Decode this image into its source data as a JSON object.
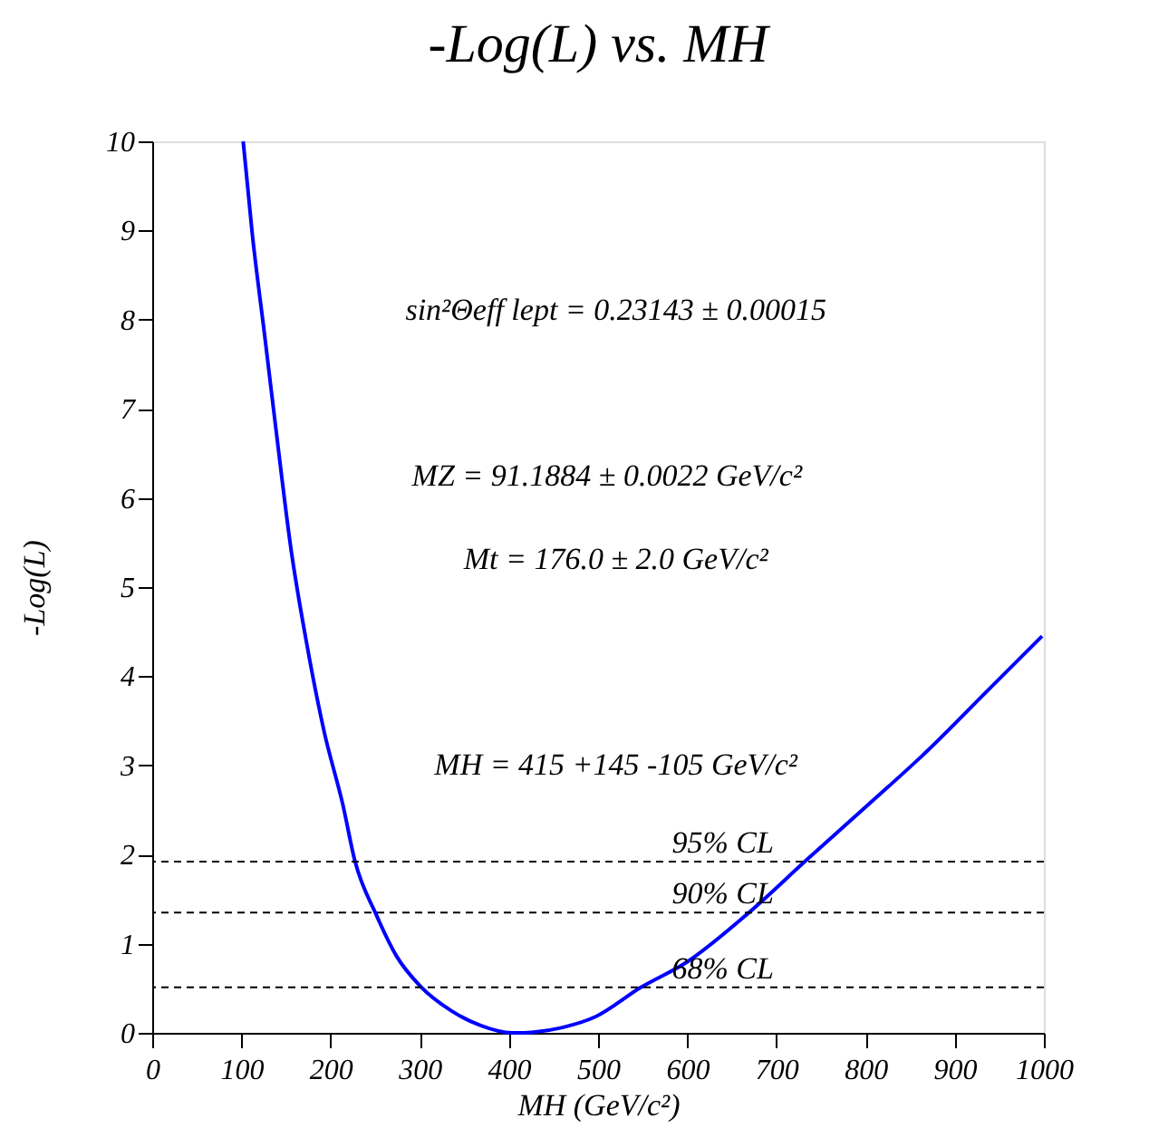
{
  "chart_data": {
    "type": "line",
    "title": "-Log(L)  vs.  MH",
    "xlabel": "MH  (GeV/c²)",
    "ylabel": "-Log(L)",
    "x": [
      102,
      112,
      126,
      139,
      156,
      173,
      193,
      214,
      227,
      251,
      274,
      301,
      335,
      369,
      403,
      415,
      430,
      460,
      497,
      548,
      599,
      667,
      734,
      802,
      869,
      937,
      998
    ],
    "series": [
      {
        "color": "#0000ff",
        "values": [
          10,
          8.98,
          7.83,
          6.75,
          5.4,
          4.38,
          3.37,
          2.55,
          1.94,
          1.33,
          0.86,
          0.52,
          0.25,
          0.08,
          0.0,
          0.0,
          0.01,
          0.06,
          0.18,
          0.51,
          0.79,
          1.33,
          1.94,
          2.55,
          3.16,
          3.84,
          4.45
        ]
      }
    ],
    "xlim": [
      0,
      1000
    ],
    "ylim": [
      0,
      10
    ],
    "xticks": [
      0,
      100,
      200,
      300,
      400,
      500,
      600,
      700,
      800,
      900,
      1000
    ],
    "yticks": [
      0,
      1,
      2,
      3,
      4,
      5,
      6,
      7,
      8,
      9,
      10
    ],
    "ref_lines": [
      {
        "axis": "y",
        "value": 1.92,
        "label": "95% CL",
        "color": "#000000",
        "line_style": "dashed"
      },
      {
        "axis": "y",
        "value": 1.35,
        "label": "90% CL",
        "color": "#000000",
        "line_style": "dashed"
      },
      {
        "axis": "y",
        "value": 0.51,
        "label": "68% CL",
        "color": "#000000",
        "line_style": "dashed"
      }
    ],
    "annotations": [
      "sin²Θeff lept = 0.23143 ± 0.00015",
      "MZ = 91.1884 ± 0.0022 GeV/c²",
      "Mt = 176.0 ± 2.0 GeV/c²",
      "MH = 415 +145 -105 GeV/c²"
    ],
    "grid": false,
    "line_style": "solid",
    "marker": "none"
  }
}
